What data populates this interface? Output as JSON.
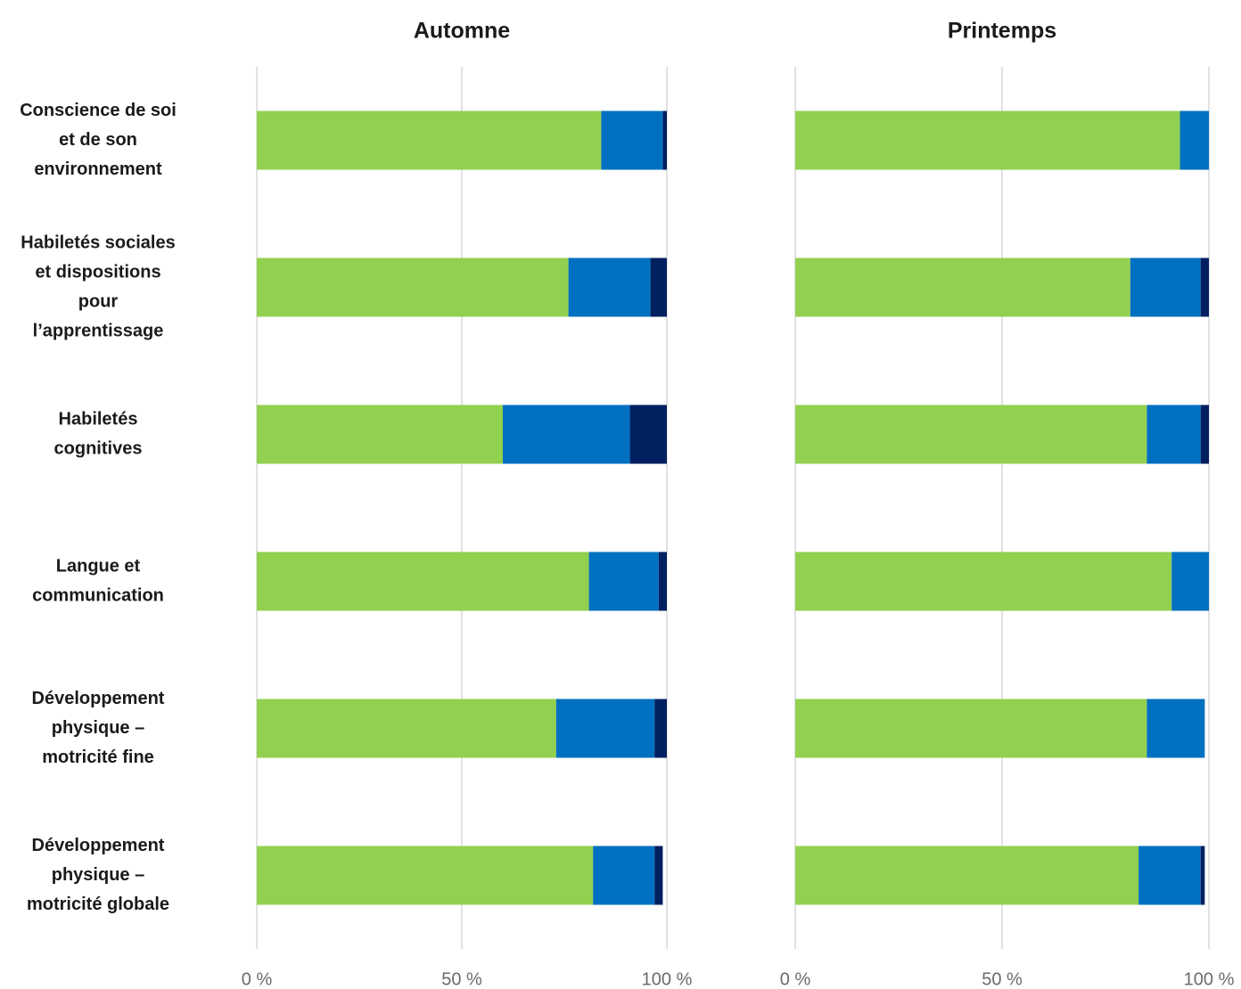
{
  "colors": {
    "segment_1": "#92d050",
    "segment_2": "#0070c0",
    "segment_3": "#002060",
    "grid": "#d9d9d9"
  },
  "chart_data": [
    {
      "type": "bar",
      "orientation": "horizontal",
      "stacked": true,
      "title": "Automne",
      "categories": [
        [
          "Conscience de soi",
          "et de son",
          "environnement"
        ],
        [
          "Habiletés sociales",
          "et dispositions",
          "pour",
          "l’apprentissage"
        ],
        [
          "Habiletés",
          "cognitives"
        ],
        [
          "Langue et",
          "communication"
        ],
        [
          "Développement",
          "physique –",
          "motricité fine"
        ],
        [
          "Développement",
          "physique –",
          "motricité globale"
        ]
      ],
      "series": [
        {
          "color": "#92d050",
          "values": [
            84,
            76,
            60,
            81,
            73,
            82
          ]
        },
        {
          "color": "#0070c0",
          "values": [
            15,
            20,
            31,
            17,
            24,
            15
          ]
        },
        {
          "color": "#002060",
          "values": [
            1,
            4,
            9,
            2,
            3,
            2
          ]
        }
      ],
      "xlim": [
        0,
        100
      ],
      "xticks": [
        "0 %",
        "50 %",
        "100 %"
      ],
      "grid": true
    },
    {
      "type": "bar",
      "orientation": "horizontal",
      "stacked": true,
      "title": "Printemps",
      "categories": [
        [
          "Conscience de soi",
          "et de son",
          "environnement"
        ],
        [
          "Habiletés sociales",
          "et dispositions",
          "pour",
          "l’apprentissage"
        ],
        [
          "Habiletés",
          "cognitives"
        ],
        [
          "Langue et",
          "communication"
        ],
        [
          "Développement",
          "physique –",
          "motricité fine"
        ],
        [
          "Développement",
          "physique –",
          "motricité globale"
        ]
      ],
      "series": [
        {
          "color": "#92d050",
          "values": [
            93,
            81,
            85,
            91,
            85,
            83
          ]
        },
        {
          "color": "#0070c0",
          "values": [
            7,
            17,
            13,
            9,
            14,
            15
          ]
        },
        {
          "color": "#002060",
          "values": [
            0,
            2,
            2,
            0,
            0,
            1
          ]
        }
      ],
      "xlim": [
        0,
        100
      ],
      "xticks": [
        "0 %",
        "50 %",
        "100 %"
      ],
      "grid": true
    }
  ]
}
